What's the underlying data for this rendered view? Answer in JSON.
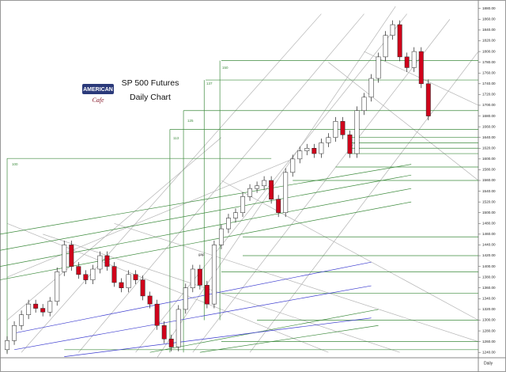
{
  "chart_data": {
    "type": "candlestick",
    "title": "SP 500 Futures",
    "subtitle": "Daily Chart",
    "logo": {
      "main": "AMERICAN",
      "script": "Cafe"
    },
    "annotations": [
      "100",
      "113",
      "125",
      "137",
      "150",
      "gap"
    ],
    "timeframe": "Daily",
    "xlim": [
      -1,
      66
    ],
    "ylim": [
      1230,
      1890
    ],
    "yticks": [
      {
        "value": 1240,
        "label": "1240.00"
      },
      {
        "value": 1260,
        "label": "1260.00"
      },
      {
        "value": 1280,
        "label": "1280.00"
      },
      {
        "value": 1300,
        "label": "1300.00"
      },
      {
        "value": 1320,
        "label": "1320.00"
      },
      {
        "value": 1340,
        "label": "1340.00"
      },
      {
        "value": 1360,
        "label": "1360.00"
      },
      {
        "value": 1380,
        "label": "1380.00"
      },
      {
        "value": 1400,
        "label": "1400.00"
      },
      {
        "value": 1420,
        "label": "1420.00"
      },
      {
        "value": 1440,
        "label": "1440.00"
      },
      {
        "value": 1460,
        "label": "1460.00"
      },
      {
        "value": 1480,
        "label": "1480.00"
      },
      {
        "value": 1500,
        "label": "1500.00"
      },
      {
        "value": 1520,
        "label": "1520.00"
      },
      {
        "value": 1540,
        "label": "1540.00"
      },
      {
        "value": 1560,
        "label": "1560.00"
      },
      {
        "value": 1580,
        "label": "1580.00"
      },
      {
        "value": 1600,
        "label": "1600.00"
      },
      {
        "value": 1620,
        "label": "1620.00"
      },
      {
        "value": 1640,
        "label": "1640.00"
      },
      {
        "value": 1660,
        "label": "1660.00"
      },
      {
        "value": 1680,
        "label": "1680.00"
      },
      {
        "value": 1700,
        "label": "1700.00"
      },
      {
        "value": 1720,
        "label": "1720.00"
      },
      {
        "value": 1740,
        "label": "1740.00"
      },
      {
        "value": 1760,
        "label": "1760.00"
      },
      {
        "value": 1780,
        "label": "1780.00"
      },
      {
        "value": 1800,
        "label": "1800.00"
      },
      {
        "value": 1820,
        "label": "1820.00"
      },
      {
        "value": 1840,
        "label": "1840.00"
      },
      {
        "value": 1860,
        "label": "1860.00"
      },
      {
        "value": 1880,
        "label": "1880.00"
      }
    ],
    "up_color": "#ffffff",
    "down_color": "#d0021b",
    "open": [
      1245,
      1262,
      1290,
      1310,
      1330,
      1322,
      1315,
      1335,
      1390,
      1440,
      1400,
      1385,
      1375,
      1395,
      1420,
      1400,
      1370,
      1360,
      1385,
      1375,
      1345,
      1330,
      1290,
      1265,
      1250,
      1320,
      1360,
      1395,
      1365,
      1330,
      1440,
      1470,
      1490,
      1500,
      1530,
      1545,
      1550,
      1560,
      1525,
      1500,
      1575,
      1600,
      1615,
      1620,
      1610,
      1630,
      1640,
      1670,
      1645,
      1610,
      1690,
      1715,
      1750,
      1790,
      1830,
      1850,
      1790,
      1770,
      1800,
      1740
    ],
    "high": [
      1270,
      1298,
      1318,
      1338,
      1338,
      1330,
      1343,
      1398,
      1448,
      1448,
      1408,
      1393,
      1403,
      1428,
      1428,
      1408,
      1378,
      1393,
      1393,
      1383,
      1353,
      1338,
      1298,
      1273,
      1328,
      1368,
      1403,
      1403,
      1373,
      1448,
      1478,
      1498,
      1508,
      1538,
      1553,
      1558,
      1568,
      1568,
      1533,
      1583,
      1608,
      1623,
      1628,
      1628,
      1638,
      1648,
      1678,
      1678,
      1653,
      1698,
      1723,
      1758,
      1798,
      1838,
      1858,
      1858,
      1798,
      1808,
      1808,
      1748
    ],
    "low": [
      1237,
      1254,
      1282,
      1302,
      1314,
      1307,
      1307,
      1327,
      1382,
      1392,
      1377,
      1367,
      1367,
      1387,
      1392,
      1362,
      1352,
      1352,
      1367,
      1337,
      1322,
      1282,
      1257,
      1242,
      1242,
      1312,
      1352,
      1357,
      1322,
      1322,
      1432,
      1462,
      1482,
      1492,
      1522,
      1537,
      1542,
      1517,
      1492,
      1492,
      1567,
      1592,
      1607,
      1602,
      1602,
      1622,
      1632,
      1637,
      1602,
      1602,
      1682,
      1707,
      1742,
      1782,
      1822,
      1782,
      1762,
      1762,
      1732,
      1672
    ],
    "close": [
      1262,
      1290,
      1310,
      1330,
      1322,
      1315,
      1335,
      1390,
      1440,
      1400,
      1385,
      1375,
      1395,
      1420,
      1400,
      1370,
      1360,
      1385,
      1375,
      1345,
      1330,
      1290,
      1265,
      1250,
      1320,
      1360,
      1395,
      1365,
      1330,
      1440,
      1470,
      1490,
      1500,
      1530,
      1545,
      1550,
      1560,
      1525,
      1500,
      1575,
      1600,
      1615,
      1620,
      1610,
      1630,
      1640,
      1670,
      1645,
      1610,
      1690,
      1715,
      1750,
      1790,
      1830,
      1850,
      1790,
      1770,
      1800,
      1740,
      1680
    ],
    "trendlines": [
      {
        "color": "#b4b4b4",
        "lines": [
          {
            "x": [
              21,
              54.4
            ],
            "y": [
              1230,
              1884
            ]
          },
          {
            "x": [
              10,
              50
            ],
            "y": [
              1240,
              1870
            ]
          },
          {
            "x": [
              18,
              56
            ],
            "y": [
              1240,
              1870
            ]
          },
          {
            "x": [
              26,
              62
            ],
            "y": [
              1240,
              1860
            ]
          },
          {
            "x": [
              34,
              66
            ],
            "y": [
              1240,
              1800
            ]
          },
          {
            "x": [
              2,
              44
            ],
            "y": [
              1240,
              1870
            ]
          },
          {
            "x": [
              0,
              30
            ],
            "y": [
              1300,
              1640
            ]
          },
          {
            "x": [
              0,
              40
            ],
            "y": [
              1380,
              1600
            ]
          },
          {
            "x": [
              0,
              45
            ],
            "y": [
              1480,
              1240
            ]
          },
          {
            "x": [
              5,
              55
            ],
            "y": [
              1460,
              1240
            ]
          },
          {
            "x": [
              15,
              66
            ],
            "y": [
              1480,
              1260
            ]
          },
          {
            "x": [
              30,
              66
            ],
            "y": [
              1560,
              1300
            ]
          },
          {
            "x": [
              50,
              66
            ],
            "y": [
              1800,
              1700
            ]
          },
          {
            "x": [
              45,
              66
            ],
            "y": [
              1780,
              1560
            ]
          }
        ]
      },
      {
        "color": "#3d8b3d",
        "lines": [
          {
            "x": [
              30,
              66
            ],
            "y": [
              1783,
              1783
            ]
          },
          {
            "x": [
              27.8,
              66
            ],
            "y": [
              1747,
              1747
            ]
          },
          {
            "x": [
              24.7,
              66
            ],
            "y": [
              1690,
              1690
            ]
          },
          {
            "x": [
              22.8,
              66
            ],
            "y": [
              1655,
              1655
            ]
          },
          {
            "x": [
              0,
              37
            ],
            "y": [
              1601,
              1601
            ]
          },
          {
            "x": [
              22.8,
              22.8
            ],
            "y": [
              1655,
              1240
            ]
          },
          {
            "x": [
              24.7,
              24.7
            ],
            "y": [
              1690,
              1240
            ]
          },
          {
            "x": [
              27.6,
              27.6
            ],
            "y": [
              1747,
              1300
            ]
          },
          {
            "x": [
              29.8,
              29.8
            ],
            "y": [
              1783,
              1300
            ]
          },
          {
            "x": [
              0,
              0
            ],
            "y": [
              1601,
              1240
            ]
          },
          {
            "x": [
              -1,
              56.6
            ],
            "y": [
              1460,
              1590
            ]
          },
          {
            "x": [
              -1,
              56.6
            ],
            "y": [
              1430,
              1570
            ]
          },
          {
            "x": [
              -1,
              56.6
            ],
            "y": [
              1400,
              1545
            ]
          },
          {
            "x": [
              -1,
              56.6
            ],
            "y": [
              1375,
              1520
            ]
          },
          {
            "x": [
              33,
              66
            ],
            "y": [
              1455,
              1455
            ]
          },
          {
            "x": [
              33,
              66
            ],
            "y": [
              1420,
              1420
            ]
          },
          {
            "x": [
              30,
              66
            ],
            "y": [
              1390,
              1390
            ]
          },
          {
            "x": [
              30,
              66
            ],
            "y": [
              1350,
              1350
            ]
          },
          {
            "x": [
              35,
              66
            ],
            "y": [
              1300,
              1300
            ]
          },
          {
            "x": [
              30,
              66
            ],
            "y": [
              1260,
              1260
            ]
          },
          {
            "x": [
              8,
              66
            ],
            "y": [
              1245,
              1245
            ]
          },
          {
            "x": [
              40,
              66
            ],
            "y": [
              1560,
              1560
            ]
          },
          {
            "x": [
              46,
              66
            ],
            "y": [
              1585,
              1585
            ]
          },
          {
            "x": [
              48,
              66
            ],
            "y": [
              1610,
              1610
            ]
          },
          {
            "x": [
              48,
              66
            ],
            "y": [
              1620,
              1620
            ]
          },
          {
            "x": [
              48,
              66
            ],
            "y": [
              1630,
              1630
            ]
          },
          {
            "x": [
              48,
              66
            ],
            "y": [
              1640,
              1640
            ]
          },
          {
            "x": [
              20,
              52
            ],
            "y": [
              1240,
              1320
            ]
          },
          {
            "x": [
              27,
              52
            ],
            "y": [
              1240,
              1290
            ]
          }
        ]
      },
      {
        "color": "#3a3acf",
        "lines": [
          {
            "x": [
              0.7,
              51
            ],
            "y": [
              1275,
              1408
            ]
          },
          {
            "x": [
              1,
              51
            ],
            "y": [
              1245,
              1364
            ]
          },
          {
            "x": [
              8,
              51
            ],
            "y": [
              1232,
              1304
            ]
          }
        ]
      }
    ]
  }
}
